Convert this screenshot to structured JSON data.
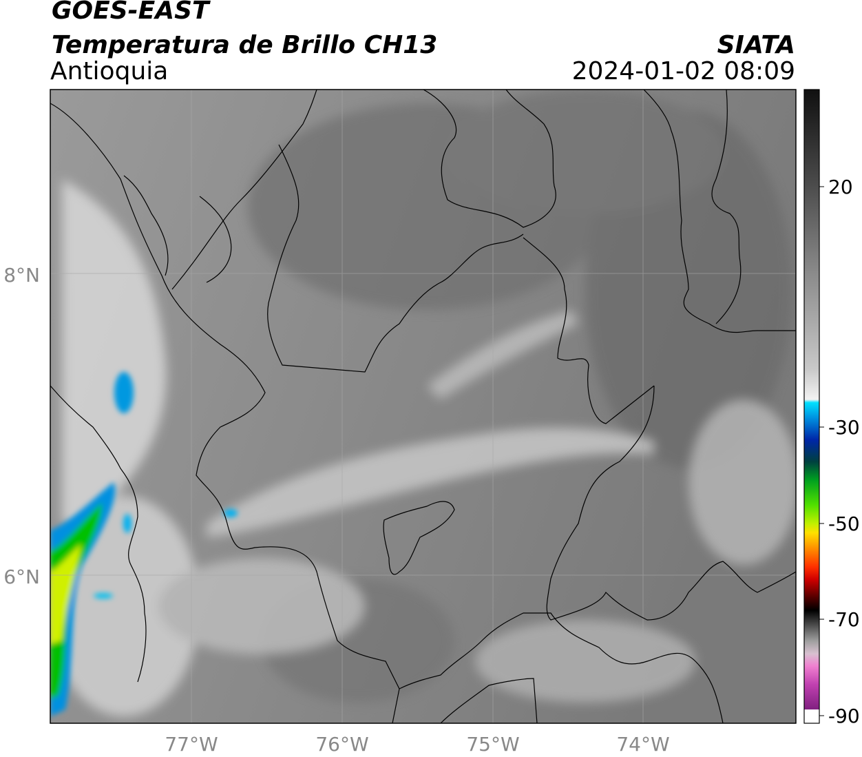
{
  "header": {
    "line1": "GOES-EAST",
    "line2": "Temperatura de Brillo CH13",
    "org": "SIATA",
    "region": "Antioquia",
    "datetime": "2024-01-02 08:09"
  },
  "axes": {
    "lat_labels": [
      "8°N",
      "6°N"
    ],
    "lon_labels": [
      "77°W",
      "76°W",
      "75°W",
      "74°W"
    ]
  },
  "colorbar": {
    "ticks": [
      "20",
      "-30",
      "-50",
      "-70",
      "-90"
    ],
    "colors": {
      "warm": "#1a1a1a",
      "mid_gray": "#8c8c8c",
      "light": "#f2f2f2",
      "cyan": "#00d4ff",
      "blue": "#0026a8",
      "green": "#00c000",
      "yellow": "#ffe000",
      "orange": "#ff8000",
      "red": "#e00000",
      "dark": "#101010",
      "pink": "#e060c0",
      "purple": "#902090"
    }
  }
}
